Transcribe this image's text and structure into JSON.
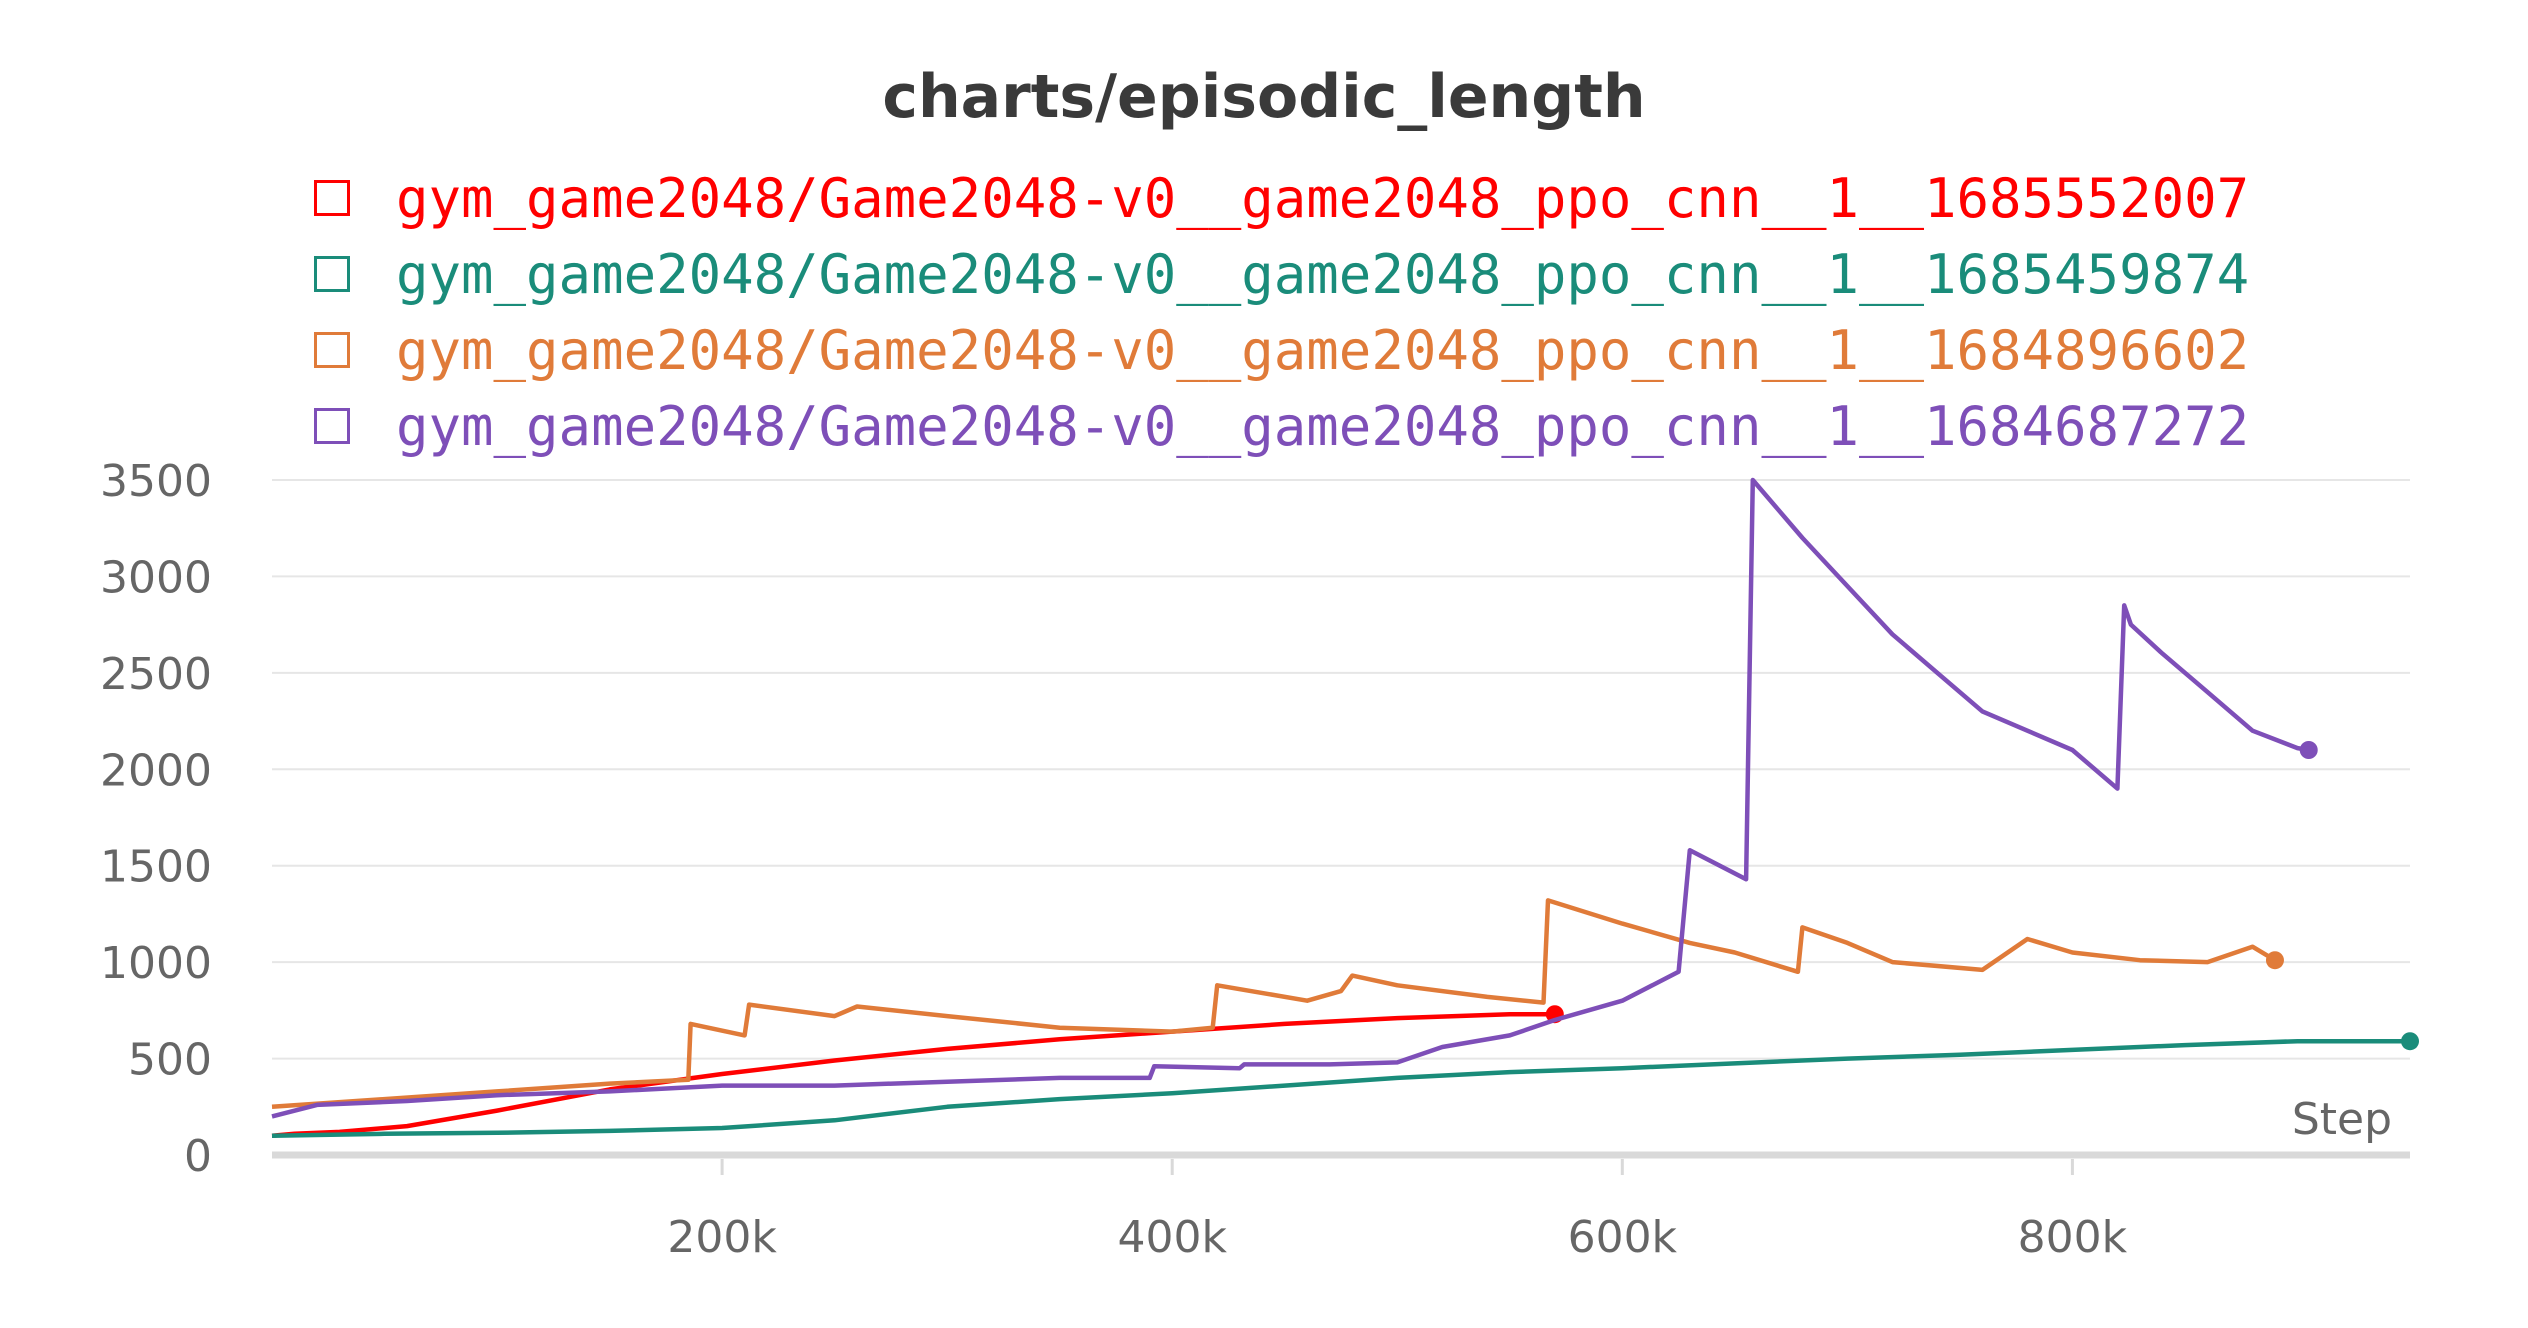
{
  "chart_data": {
    "type": "line",
    "title": "charts/episodic_length",
    "xlabel": "Step",
    "ylabel": "",
    "xlim": [
      0,
      950000
    ],
    "ylim": [
      0,
      3500
    ],
    "grid": true,
    "legend_position": "top",
    "yticks": [
      0,
      500,
      1000,
      1500,
      2000,
      2500,
      3000,
      3500
    ],
    "ytick_labels": [
      "0",
      "500",
      "1000",
      "1500",
      "2000",
      "2500",
      "3000",
      "3500"
    ],
    "xticks": [
      200000,
      400000,
      600000,
      800000
    ],
    "xtick_labels": [
      "200k",
      "400k",
      "600k",
      "800k"
    ],
    "series": [
      {
        "name": "gym_game2048/Game2048-v0__game2048_ppo_cnn__1__1685552007",
        "color": "#ff0000",
        "x": [
          0,
          10000,
          30000,
          60000,
          100000,
          150000,
          200000,
          250000,
          300000,
          350000,
          400000,
          450000,
          500000,
          550000,
          570000
        ],
        "y": [
          100,
          110,
          120,
          150,
          230,
          340,
          420,
          490,
          550,
          600,
          640,
          680,
          710,
          730,
          730
        ]
      },
      {
        "name": "gym_game2048/Game2048-v0__game2048_ppo_cnn__1__1685459874",
        "color": "#1a8c7a",
        "x": [
          0,
          50000,
          100000,
          150000,
          200000,
          250000,
          300000,
          350000,
          400000,
          450000,
          500000,
          550000,
          600000,
          650000,
          700000,
          750000,
          800000,
          850000,
          900000,
          950000
        ],
        "y": [
          100,
          110,
          115,
          125,
          140,
          180,
          250,
          290,
          320,
          360,
          400,
          430,
          450,
          475,
          500,
          520,
          545,
          570,
          590,
          590
        ]
      },
      {
        "name": "gym_game2048/Game2048-v0__game2048_ppo_cnn__1__1684896602",
        "color": "#e07b39",
        "x": [
          0,
          50000,
          100000,
          150000,
          185000,
          186000,
          210000,
          212000,
          250000,
          260000,
          300000,
          350000,
          400000,
          418000,
          420000,
          460000,
          475000,
          480000,
          500000,
          540000,
          565000,
          567000,
          600000,
          630000,
          650000,
          678000,
          680000,
          700000,
          720000,
          760000,
          780000,
          800000,
          830000,
          860000,
          880000,
          890000
        ],
        "y": [
          250,
          290,
          330,
          370,
          390,
          680,
          620,
          780,
          720,
          770,
          720,
          660,
          640,
          660,
          880,
          800,
          850,
          930,
          880,
          820,
          790,
          1320,
          1200,
          1100,
          1050,
          950,
          1180,
          1100,
          1000,
          960,
          1120,
          1050,
          1010,
          1000,
          1080,
          1010
        ]
      },
      {
        "name": "gym_game2048/Game2048-v0__game2048_ppo_cnn__1__1684687272",
        "color": "#7e4fb8",
        "x": [
          0,
          20000,
          60000,
          100000,
          150000,
          200000,
          250000,
          300000,
          350000,
          390000,
          392000,
          430000,
          432000,
          470000,
          500000,
          520000,
          550000,
          570000,
          600000,
          625000,
          630000,
          655000,
          658000,
          680000,
          700000,
          720000,
          740000,
          760000,
          780000,
          800000,
          820000,
          823000,
          826000,
          840000,
          860000,
          880000,
          900000,
          905000
        ],
        "y": [
          200,
          260,
          280,
          310,
          330,
          360,
          360,
          380,
          400,
          400,
          460,
          450,
          470,
          470,
          480,
          560,
          620,
          700,
          800,
          950,
          1580,
          1430,
          3500,
          3200,
          2950,
          2700,
          2500,
          2300,
          2200,
          2100,
          1900,
          2850,
          2750,
          2600,
          2400,
          2200,
          2110,
          2100
        ]
      }
    ]
  }
}
